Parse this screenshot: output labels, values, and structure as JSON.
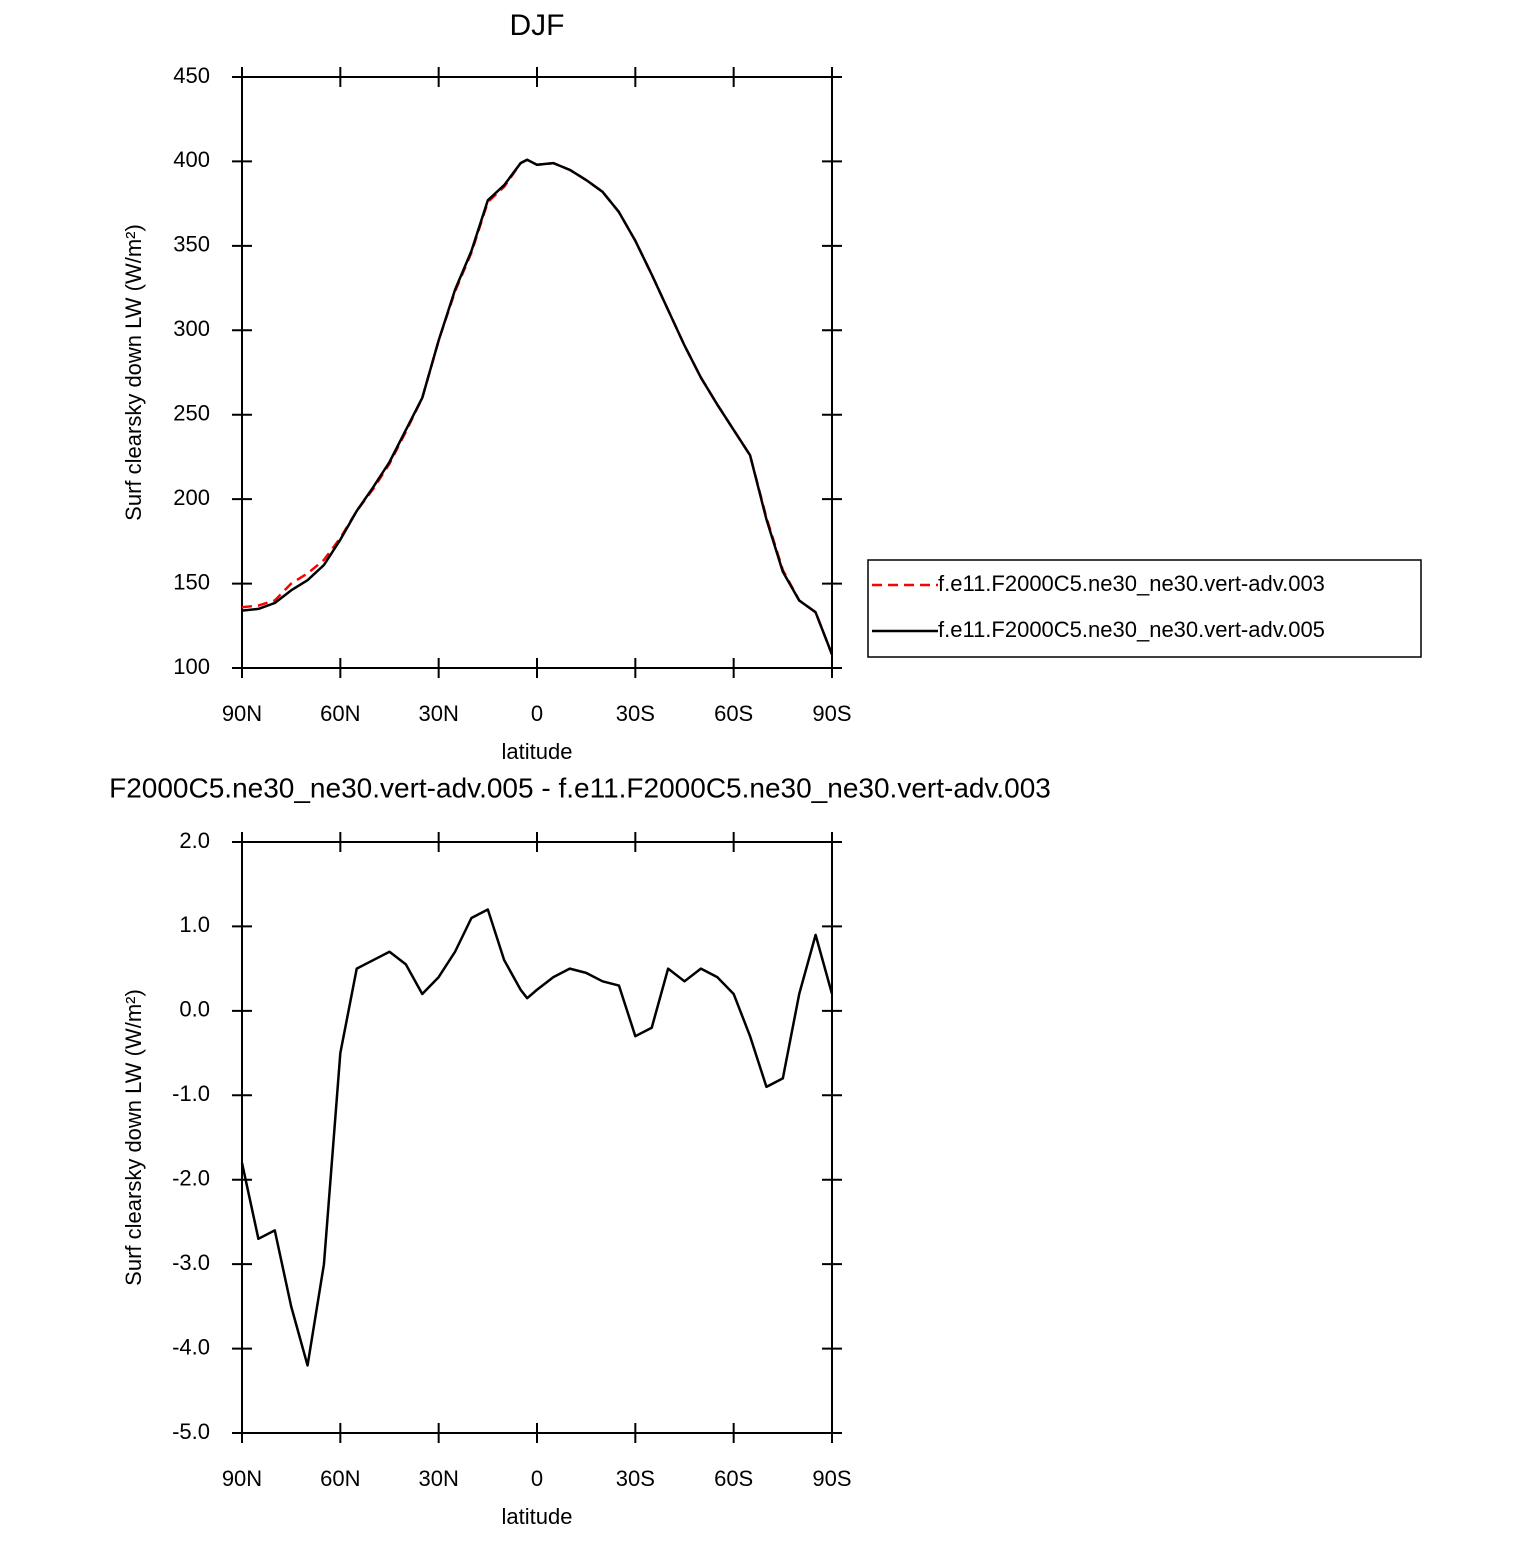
{
  "chart_data": [
    {
      "type": "line",
      "title": "DJF",
      "x_label": "latitude",
      "y_label": "Surf clearsky down LW (W/m²)",
      "x": [
        90,
        85,
        80,
        75,
        70,
        65,
        60,
        55,
        50,
        45,
        40,
        35,
        30,
        25,
        20,
        15,
        10,
        5,
        3,
        0,
        -5,
        -10,
        -15,
        -20,
        -25,
        -30,
        -35,
        -40,
        -45,
        -50,
        -55,
        -60,
        -65,
        -70,
        -75,
        -80,
        -85,
        -90
      ],
      "xlim": [
        90,
        -90
      ],
      "xticks": [
        {
          "value": 90,
          "label": "90N"
        },
        {
          "value": 60,
          "label": "60N"
        },
        {
          "value": 30,
          "label": "30N"
        },
        0,
        {
          "value": -30,
          "label": "30S"
        },
        {
          "value": -60,
          "label": "60S"
        },
        {
          "value": -90,
          "label": "90S"
        }
      ],
      "ylim": [
        100,
        450
      ],
      "yticks": [
        100,
        150,
        200,
        250,
        300,
        350,
        400,
        450
      ],
      "legend": "outside-right",
      "series": [
        {
          "name": "f.e11.F2000C5.ne30_ne30.vert-adv.003",
          "color": "#ff0000",
          "dash": "dashed",
          "values": [
            136,
            137,
            140,
            150,
            156,
            164,
            177,
            193,
            206,
            221,
            240,
            260,
            294,
            323,
            346,
            376,
            385,
            399,
            401,
            398,
            399,
            395,
            389,
            382,
            370,
            353,
            333,
            312,
            291,
            272,
            256,
            241,
            226,
            189,
            158,
            140,
            133,
            108
          ]
        },
        {
          "name": "f.e11.F2000C5.ne30_ne30.vert-adv.005",
          "color": "#000000",
          "dash": "solid",
          "values": [
            134,
            135,
            138.5,
            146,
            152,
            161,
            176,
            193,
            207,
            222,
            241,
            260,
            294,
            324,
            347,
            377,
            386,
            399,
            401,
            398,
            399,
            395,
            389,
            382,
            370,
            353,
            333,
            312,
            291,
            272,
            256,
            241,
            226,
            188,
            157,
            140,
            133,
            108
          ]
        }
      ]
    },
    {
      "type": "line",
      "title": "F2000C5.ne30_ne30.vert-adv.005 - f.e11.F2000C5.ne30_ne30.vert-adv.003",
      "x_label": "latitude",
      "y_label": "Surf clearsky down LW (W/m²)",
      "x": [
        90,
        85,
        80,
        75,
        70,
        65,
        60,
        55,
        50,
        45,
        40,
        35,
        30,
        25,
        20,
        15,
        10,
        5,
        3,
        0,
        -5,
        -10,
        -15,
        -20,
        -25,
        -30,
        -35,
        -40,
        -45,
        -50,
        -55,
        -60,
        -65,
        -70,
        -75,
        -80,
        -85,
        -90
      ],
      "xlim": [
        90,
        -90
      ],
      "xticks": [
        {
          "value": 90,
          "label": "90N"
        },
        {
          "value": 60,
          "label": "60N"
        },
        {
          "value": 30,
          "label": "30N"
        },
        0,
        {
          "value": -30,
          "label": "30S"
        },
        {
          "value": -60,
          "label": "60S"
        },
        {
          "value": -90,
          "label": "90S"
        }
      ],
      "ylim": [
        -5,
        2
      ],
      "yticks": [
        {
          "value": -5,
          "label": "-5.0"
        },
        {
          "value": -4,
          "label": "-4.0"
        },
        {
          "value": -3,
          "label": "-3.0"
        },
        {
          "value": -2,
          "label": "-2.0"
        },
        {
          "value": -1,
          "label": "-1.0"
        },
        {
          "value": 0,
          "label": "0.0"
        },
        {
          "value": 1,
          "label": "1.0"
        },
        {
          "value": 2,
          "label": "2.0"
        }
      ],
      "color": "#000000",
      "values": [
        -1.8,
        -2.7,
        -2.6,
        -3.5,
        -4.2,
        -3.0,
        -0.5,
        0.5,
        0.6,
        0.7,
        0.55,
        0.2,
        0.4,
        0.7,
        1.1,
        1.2,
        0.6,
        0.25,
        0.15,
        0.25,
        0.4,
        0.5,
        0.45,
        0.35,
        0.3,
        -0.3,
        -0.2,
        0.5,
        0.35,
        0.5,
        0.4,
        0.2,
        -0.3,
        -0.9,
        -0.8,
        0.2,
        0.9,
        0.2
      ]
    }
  ]
}
